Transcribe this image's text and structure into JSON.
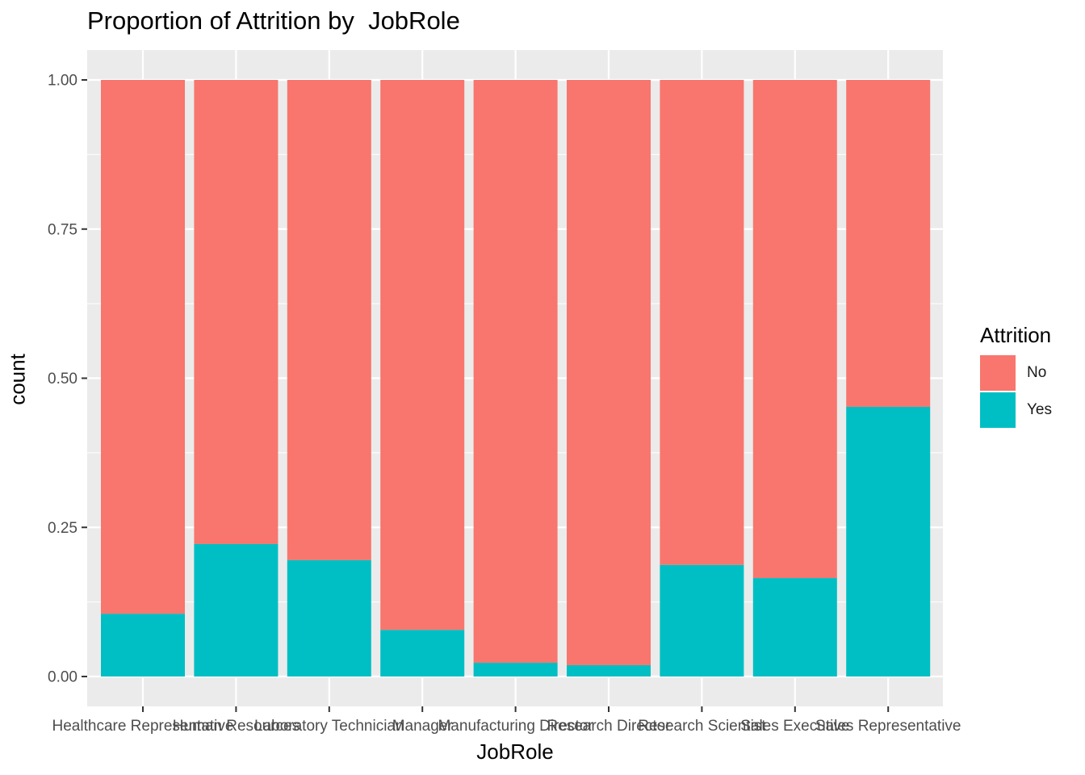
{
  "chart_data": {
    "type": "bar",
    "stacked": true,
    "title": "Proportion of Attrition by  JobRole",
    "xlabel": "JobRole",
    "ylabel": "count",
    "ylim": [
      0,
      1
    ],
    "yticks": [
      "0.00",
      "0.25",
      "0.50",
      "0.75",
      "1.00"
    ],
    "categories": [
      "Healthcare Representative",
      "Human Resources",
      "Laboratory Technician",
      "Manager",
      "Manufacturing Director",
      "Research Director",
      "Research Scientist",
      "Sales Executive",
      "Sales Representative"
    ],
    "series": [
      {
        "name": "No",
        "color": "#F8766D",
        "values": [
          0.895,
          0.778,
          0.805,
          0.922,
          0.977,
          0.981,
          0.813,
          0.835,
          0.548
        ]
      },
      {
        "name": "Yes",
        "color": "#00BFC4",
        "values": [
          0.105,
          0.222,
          0.195,
          0.078,
          0.023,
          0.019,
          0.187,
          0.165,
          0.452
        ]
      }
    ],
    "legend": {
      "title": "Attrition",
      "position": "right"
    },
    "grid": true,
    "panel_background": "#EBEBEB"
  }
}
